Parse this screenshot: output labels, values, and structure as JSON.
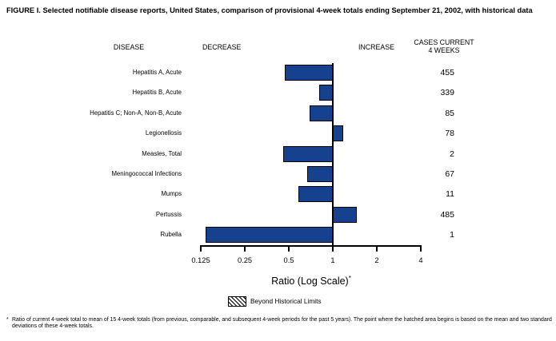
{
  "title": "FIGURE I. Selected notifiable disease reports, United States, comparison of provisional 4-week totals ending September 21, 2002, with historical data",
  "headers": {
    "disease": "DISEASE",
    "decrease": "DECREASE",
    "increase": "INCREASE",
    "cases_line1": "CASES CURRENT",
    "cases_line2": "4 WEEKS"
  },
  "chart_data": {
    "type": "bar",
    "orientation": "horizontal",
    "scale": "log",
    "baseline_value": 1,
    "xlim": [
      0.125,
      4
    ],
    "x_ticks": [
      0.125,
      0.25,
      0.5,
      1,
      2,
      4
    ],
    "x_tick_labels": [
      "0.125",
      "0.25",
      "0.5",
      "1",
      "2",
      "4"
    ],
    "xlabel": "Ratio (Log Scale)",
    "xlabel_sup": "*",
    "bar_color": "#16418f",
    "grid": false,
    "rows": [
      {
        "disease": "Hepatitis A, Acute",
        "ratio": 0.47,
        "cases": 455
      },
      {
        "disease": "Hepatitis B, Acute",
        "ratio": 0.81,
        "cases": 339
      },
      {
        "disease": "Hepatitis C; Non-A, Non-B, Acute",
        "ratio": 0.69,
        "cases": 85
      },
      {
        "disease": "Legionellosis",
        "ratio": 1.18,
        "cases": 78
      },
      {
        "disease": "Measles, Total",
        "ratio": 0.46,
        "cases": 2
      },
      {
        "disease": "Meningococcal Infections",
        "ratio": 0.67,
        "cases": 67
      },
      {
        "disease": "Mumps",
        "ratio": 0.58,
        "cases": 11
      },
      {
        "disease": "Pertussis",
        "ratio": 1.46,
        "cases": 485
      },
      {
        "disease": "Rubella",
        "ratio": 0.135,
        "cases": 1
      }
    ]
  },
  "legend": {
    "label": "Beyond Historical Limits"
  },
  "footnote": {
    "marker": "*",
    "text": "Ratio of current 4-week total to mean of 15 4-week totals (from previous, comparable, and subsequent 4-week periods for the past 5 years). The point where the hatched area begins is based on the mean and two standard deviations of these 4-week totals."
  }
}
